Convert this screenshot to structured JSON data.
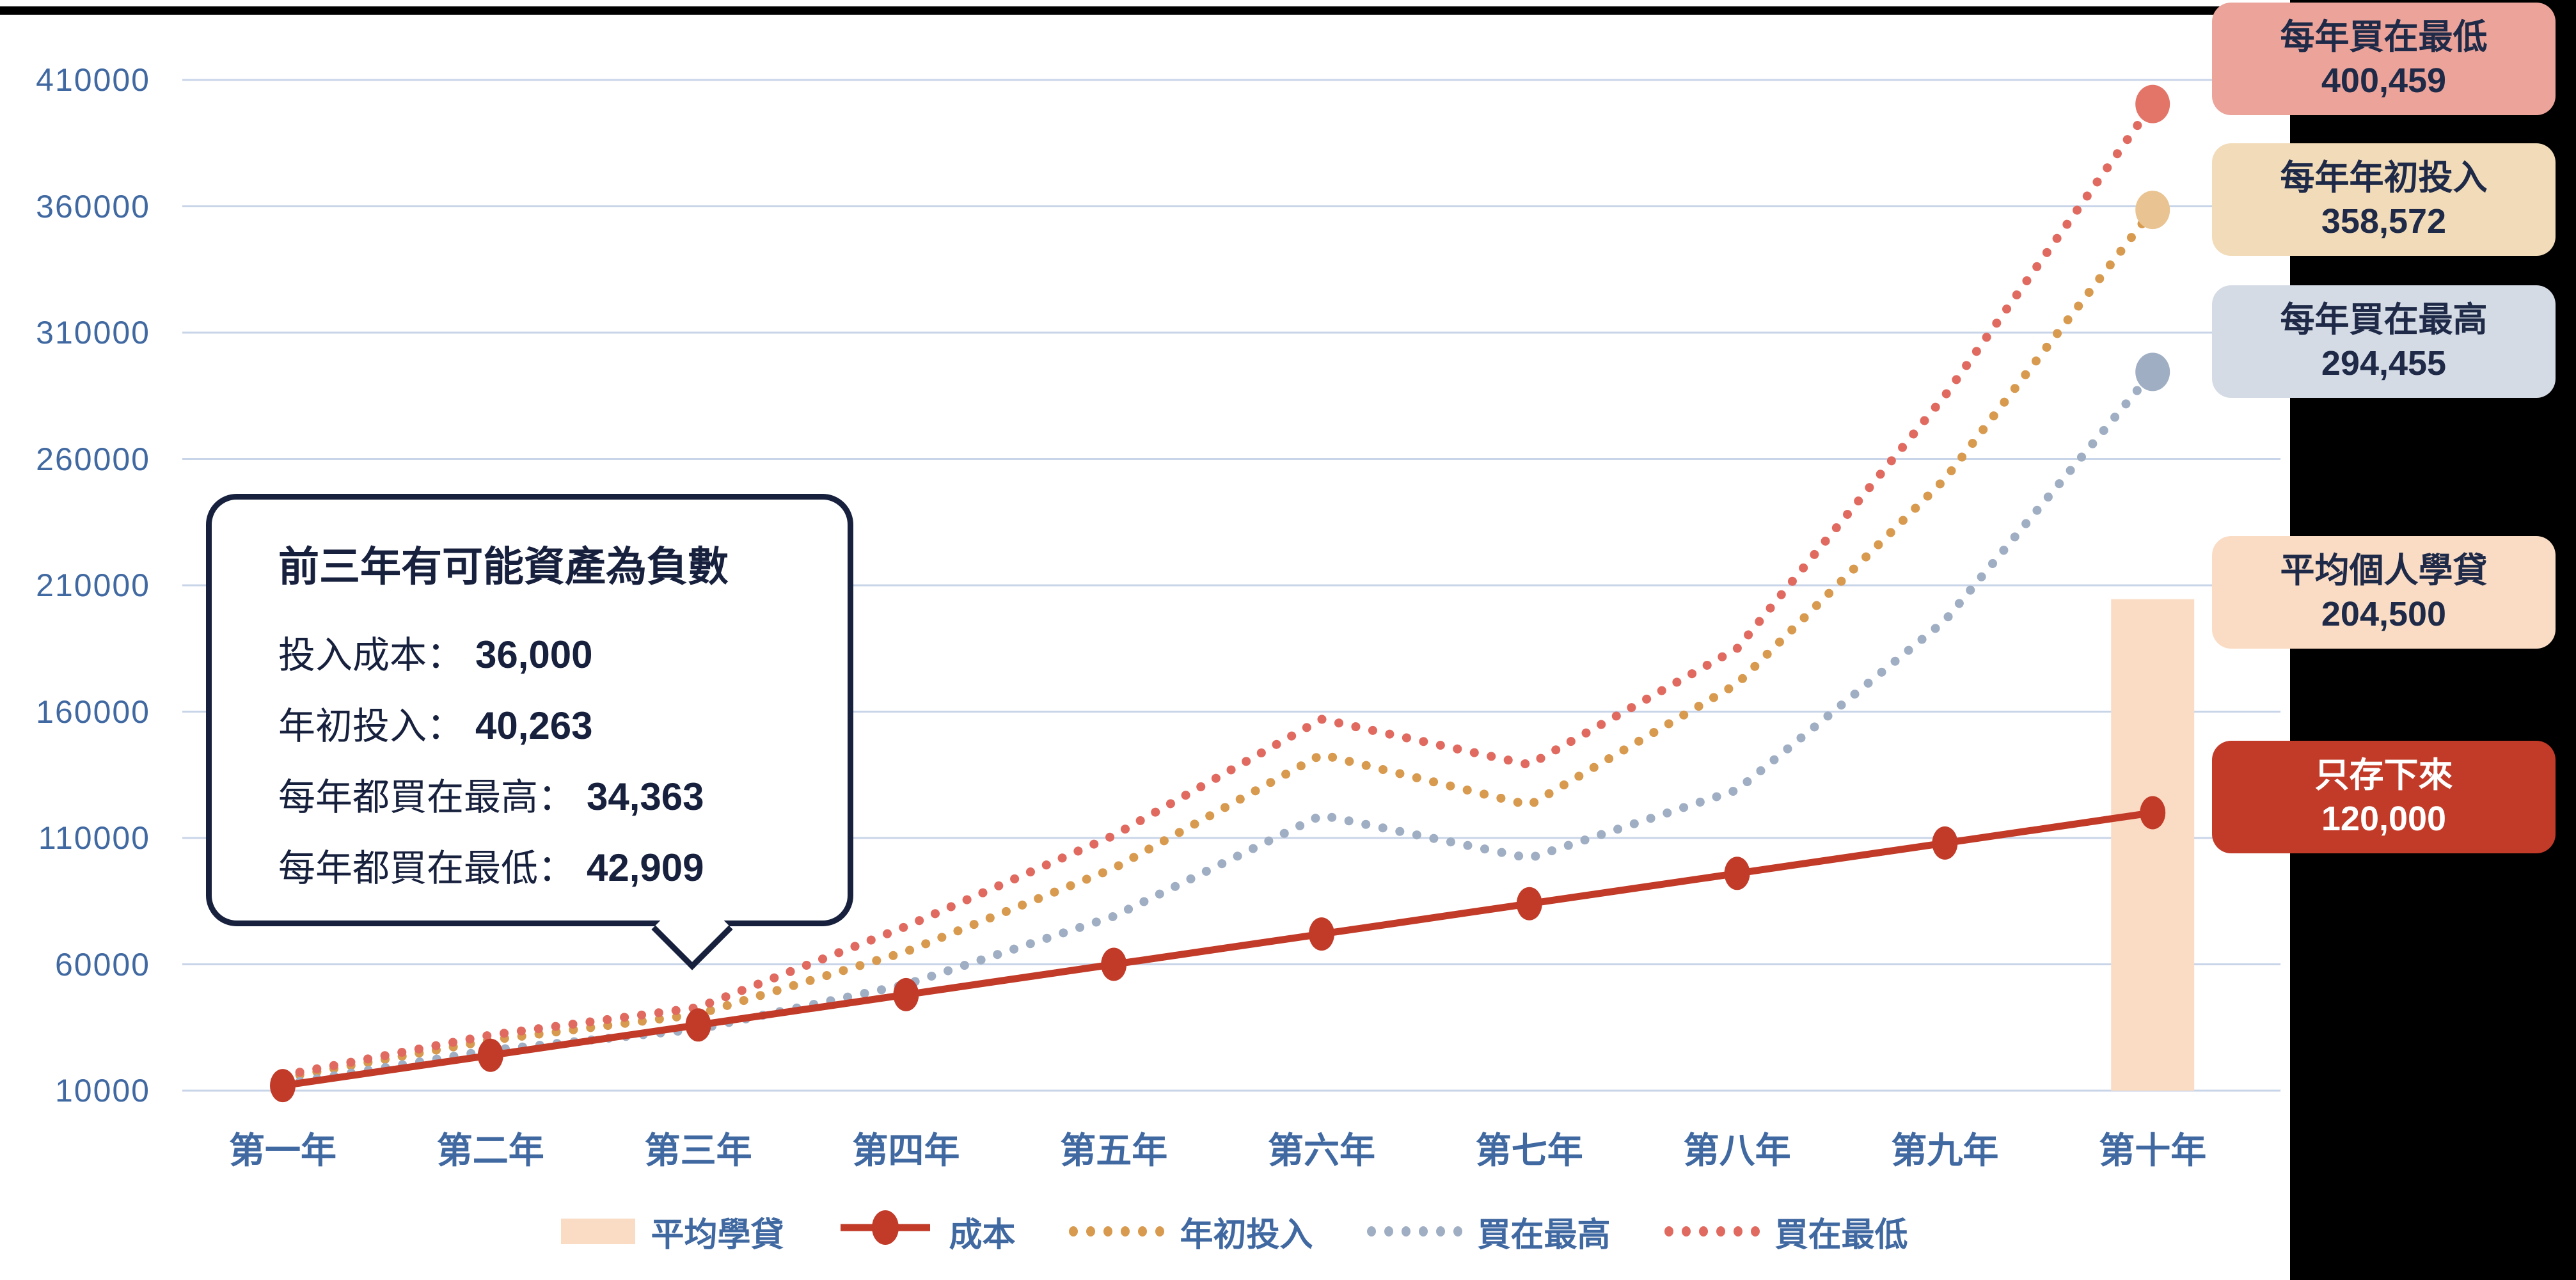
{
  "page": {
    "background": "#FFFFFF",
    "top_bar_color": "#000000",
    "right_panel_color": "#000000"
  },
  "colors": {
    "axis_text": "#4169A1",
    "gridline": "#C8D4E8",
    "navy_text": "#1E2A47",
    "callout_border": "#17213D",
    "white": "#FFFFFF"
  },
  "chart_data": {
    "type": "line",
    "title": "",
    "categories": [
      "第一年",
      "第二年",
      "第三年",
      "第四年",
      "第五年",
      "第六年",
      "第七年",
      "第八年",
      "第九年",
      "第十年"
    ],
    "series": [
      {
        "id": "loan-bar",
        "name": "平均學貸",
        "type": "bar",
        "color": "#FADCC5",
        "values": [
          null,
          null,
          null,
          null,
          null,
          null,
          null,
          null,
          null,
          204500
        ]
      },
      {
        "id": "cost",
        "name": "成本",
        "type": "line",
        "line_style": "solid",
        "color": "#C23A28",
        "values": [
          12000,
          24000,
          36000,
          48000,
          60000,
          72000,
          84000,
          96000,
          108000,
          120000
        ]
      },
      {
        "id": "year-start",
        "name": "年初投入",
        "type": "line",
        "line_style": "dotted",
        "color": "#D79A4E",
        "endpoint_color": "#E9C492",
        "values": [
          15000,
          30000,
          40263,
          65000,
          98000,
          143000,
          123000,
          171000,
          252000,
          358572
        ]
      },
      {
        "id": "buy-high",
        "name": "買在最高",
        "type": "line",
        "line_style": "dotted",
        "color": "#9FAEC3",
        "endpoint_color": "#9FAEC3",
        "values": [
          12500,
          26000,
          34363,
          52000,
          79000,
          119000,
          102000,
          129000,
          196000,
          294455
        ]
      },
      {
        "id": "buy-low",
        "name": "買在最低",
        "type": "line",
        "line_style": "dotted",
        "color": "#E06A5F",
        "endpoint_color": "#E37468",
        "values": [
          16000,
          32000,
          42909,
          75000,
          111000,
          157000,
          139000,
          185000,
          285000,
          400459
        ]
      }
    ],
    "ylim": [
      10000,
      410000
    ],
    "yticks": [
      410000,
      360000,
      310000,
      260000,
      210000,
      160000,
      110000,
      60000,
      10000
    ],
    "grid": "horizontal",
    "legend_position": "bottom"
  },
  "annotations": {
    "callout": {
      "title": "前三年有可能資產為負數",
      "lines": [
        {
          "label": "投入成本：",
          "value": "36,000"
        },
        {
          "label": "年初投入：",
          "value": "40,263"
        },
        {
          "label": "每年都買在最高：",
          "value": "34,363"
        },
        {
          "label": "每年都買在最低：",
          "value": "42,909"
        }
      ]
    },
    "side_labels": [
      {
        "id": "buy-low-result",
        "title": "每年買在最低",
        "value": "400,459",
        "bg": "#EBA39A",
        "text": "#1E2A47"
      },
      {
        "id": "year-start-result",
        "title": "每年年初投入",
        "value": "358,572",
        "bg": "#F2DBB8",
        "text": "#1E2A47"
      },
      {
        "id": "buy-high-result",
        "title": "每年買在最高",
        "value": "294,455",
        "bg": "#D5DBE5",
        "text": "#1E2A47"
      },
      {
        "id": "average-loan",
        "title": "平均個人學貸",
        "value": "204,500",
        "bg": "#FADCC5",
        "text": "#1E2A47"
      },
      {
        "id": "only-saved",
        "title": "只存下來",
        "value": "120,000",
        "bg": "#C23A28",
        "text": "#FFFFFF"
      }
    ]
  }
}
